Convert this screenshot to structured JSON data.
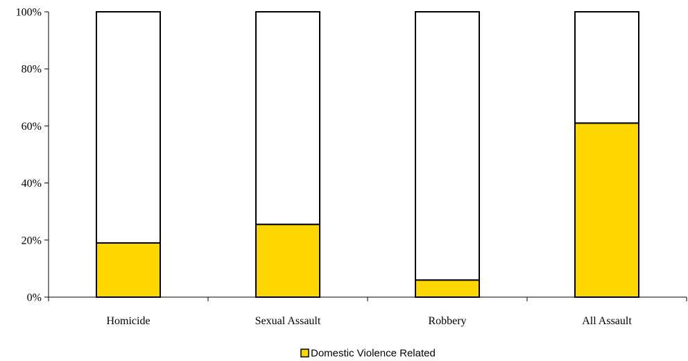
{
  "chart_data": {
    "type": "bar",
    "stacked": true,
    "percent_stacked": true,
    "categories": [
      "Homicide",
      "Sexual Assault",
      "Robbery",
      "All Assault"
    ],
    "series": [
      {
        "name": "Domestic Violence Related",
        "values": [
          19,
          25.5,
          6,
          61
        ],
        "color": "#FFD700"
      },
      {
        "values": [
          81,
          74.5,
          94,
          39
        ],
        "color": "#FFFFFF"
      }
    ],
    "y_ticks": [
      "0%",
      "20%",
      "40%",
      "60%",
      "80%",
      "100%"
    ],
    "ylim": [
      0,
      100
    ],
    "grid": false,
    "legend": {
      "placement": "bottom",
      "entries": [
        "Domestic Violence Related"
      ]
    },
    "title": "",
    "xlabel": "",
    "ylabel": ""
  }
}
